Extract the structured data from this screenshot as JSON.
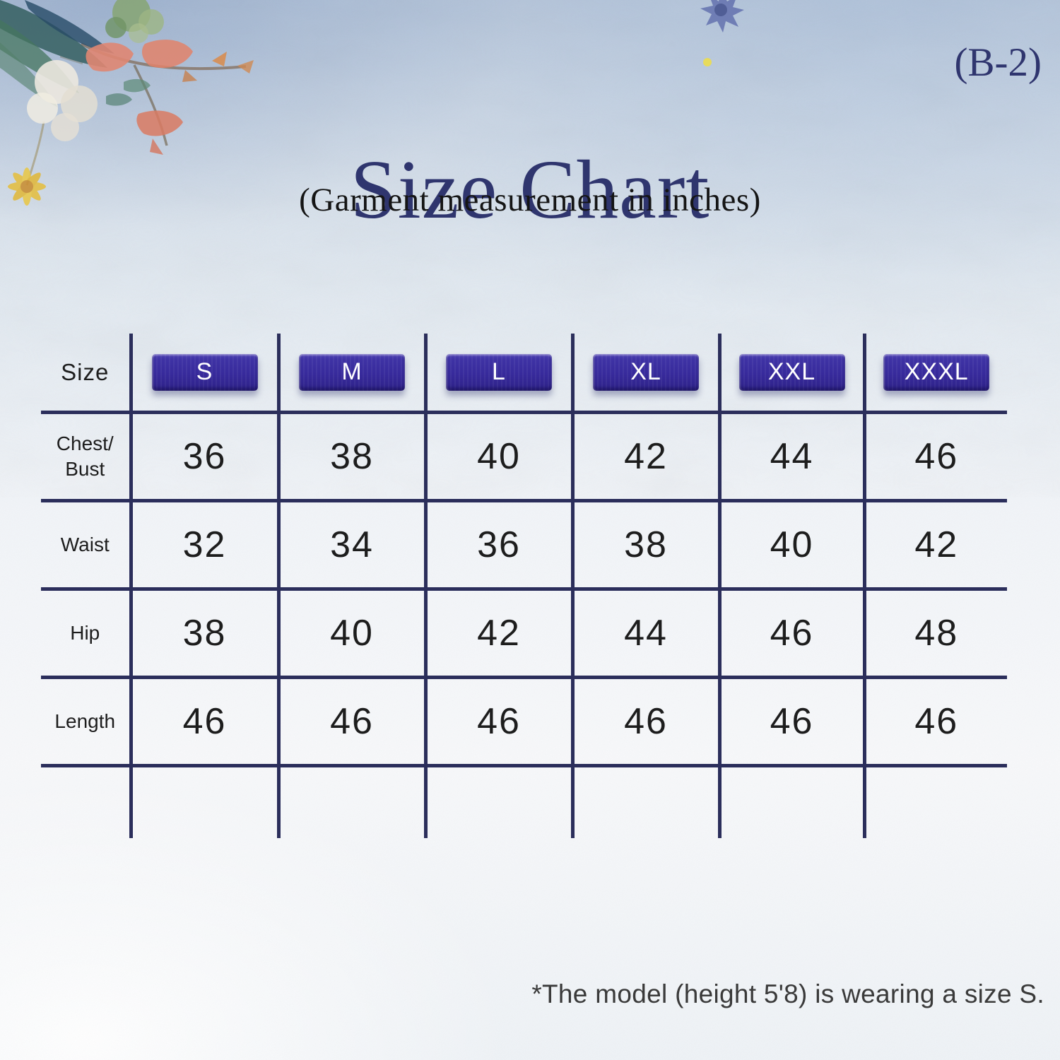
{
  "page": {
    "variant_tag": "(B-2)",
    "title": "Size Chart",
    "subtitle": "(Garment measurement in inches)",
    "footnote": "*The model (height 5'8) is wearing a size S."
  },
  "chart_data": {
    "type": "table",
    "title": "Size Chart",
    "subtitle": "(Garment measurement in inches)",
    "units": "inches",
    "corner_label": "Size",
    "columns": [
      "S",
      "M",
      "L",
      "XL",
      "XXL",
      "XXXL"
    ],
    "rows": [
      {
        "label": "Chest/Bust",
        "values": [
          "36",
          "38",
          "40",
          "42",
          "44",
          "46"
        ]
      },
      {
        "label": "Waist",
        "values": [
          "32",
          "34",
          "36",
          "38",
          "40",
          "42"
        ]
      },
      {
        "label": "Hip",
        "values": [
          "38",
          "40",
          "42",
          "44",
          "46",
          "48"
        ]
      },
      {
        "label": "Length",
        "values": [
          "46",
          "46",
          "46",
          "46",
          "46",
          "46"
        ]
      }
    ],
    "has_trailing_empty_row": true
  },
  "colors": {
    "title_navy": "#2f356e",
    "table_line_navy": "#2b2e5b",
    "badge_indigo": "#3a2e9e",
    "badge_text": "#ffffff",
    "body_text": "#1d1d1d",
    "footnote_text": "#3a3a3a",
    "background_blue": "#bac8db"
  },
  "decorations": {
    "floral_corner": "watercolor-floral-top-left",
    "cornflower": "blue-cornflower-top-center"
  }
}
